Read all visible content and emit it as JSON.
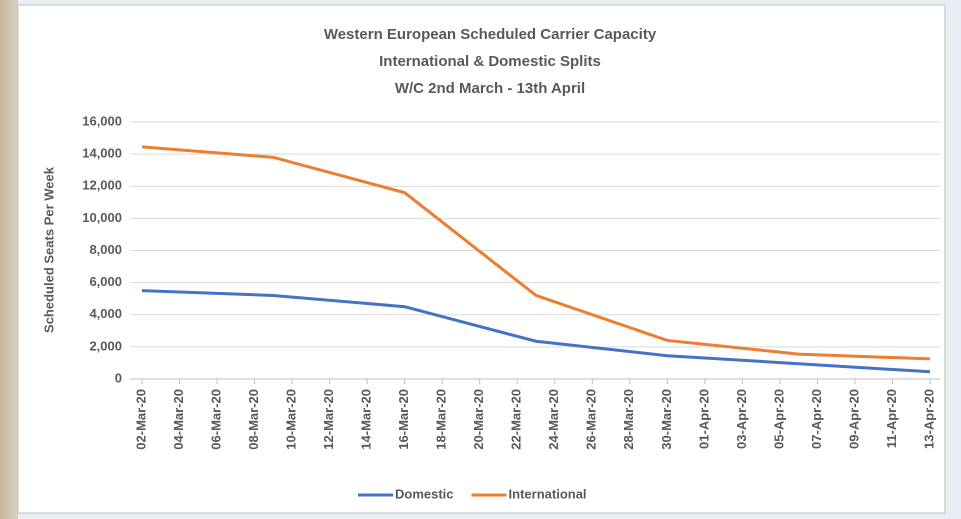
{
  "chart_data": {
    "type": "line",
    "title": "Western European Scheduled Carrier Capacity",
    "subtitle": [
      "International & Domestic Splits",
      "W/C 2nd March - 13th April"
    ],
    "y_label": "Scheduled Seats Per Week",
    "x": [
      "02-Mar-20",
      "09-Mar-20",
      "16-Mar-20",
      "23-Mar-20",
      "30-Mar-20",
      "06-Apr-20",
      "13-Apr-20"
    ],
    "xlim": [
      "02-Mar-20",
      "13-Apr-20"
    ],
    "xticks": [
      "02-Mar-20",
      "04-Mar-20",
      "06-Mar-20",
      "08-Mar-20",
      "10-Mar-20",
      "12-Mar-20",
      "14-Mar-20",
      "16-Mar-20",
      "18-Mar-20",
      "20-Mar-20",
      "22-Mar-20",
      "24-Mar-20",
      "26-Mar-20",
      "28-Mar-20",
      "30-Mar-20",
      "01-Apr-20",
      "03-Apr-20",
      "05-Apr-20",
      "07-Apr-20",
      "09-Apr-20",
      "11-Apr-20",
      "13-Apr-20"
    ],
    "series": [
      {
        "name": "Domestic",
        "color": "#4472c4",
        "values": [
          5500,
          5200,
          4500,
          2350,
          1450,
          950,
          450
        ]
      },
      {
        "name": "International",
        "color": "#ed7d31",
        "values": [
          14450,
          13800,
          11600,
          5200,
          2400,
          1550,
          1250
        ]
      }
    ],
    "ylim": [
      0,
      16000
    ],
    "yticks": [
      0,
      {
        "value": 2000,
        "label": "2,000"
      },
      {
        "value": 4000,
        "label": "4,000"
      },
      {
        "value": 6000,
        "label": "6,000"
      },
      {
        "value": 8000,
        "label": "8,000"
      },
      {
        "value": 10000,
        "label": "10,000"
      },
      {
        "value": 12000,
        "label": "12,000"
      },
      {
        "value": 14000,
        "label": "14,000"
      },
      {
        "value": 16000,
        "label": "16,000"
      }
    ],
    "grid": true,
    "legend": "bottom"
  }
}
